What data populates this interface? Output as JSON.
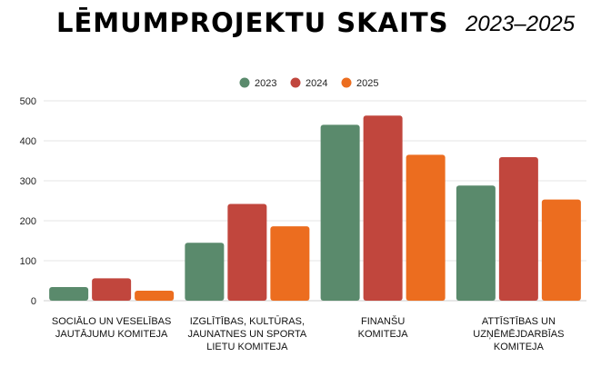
{
  "title": "LĒMUMPROJEKTU SKAITS",
  "subtitle": "2023–2025",
  "colors": {
    "2023": "#5a8a6c",
    "2024": "#c1463d",
    "2025": "#ec6d1f",
    "grid": "#e6e6e6"
  },
  "chart_data": {
    "type": "bar",
    "categories": [
      [
        "SOCIĀLO UN VESELĪBAS",
        "JAUTĀJUMU KOMITEJA"
      ],
      [
        "IZGLĪTĪBAS, KULTŪRAS,",
        "JAUNATNES UN SPORTA",
        "LIETU KOMITEJA"
      ],
      [
        "FINANŠU",
        "KOMITEJA"
      ],
      [
        "ATTĪSTĪBAS UN",
        "UZŅĒMĒJDARBĪAS",
        "KOMITEJA"
      ]
    ],
    "series": [
      {
        "name": "2023",
        "values": [
          34,
          145,
          440,
          288
        ]
      },
      {
        "name": "2024",
        "values": [
          56,
          242,
          463,
          359
        ]
      },
      {
        "name": "2025",
        "values": [
          25,
          186,
          365,
          253
        ]
      }
    ],
    "ylim": [
      0,
      500
    ],
    "yticks": [
      0,
      100,
      200,
      300,
      400,
      500
    ],
    "grid": true,
    "legend": "top-center"
  }
}
